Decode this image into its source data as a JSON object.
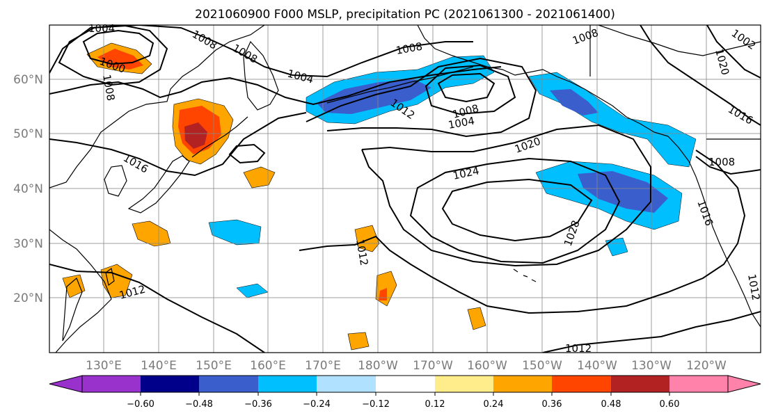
{
  "title": "2021060900 F000 MSLP, precipitation PC (2021061300 - 2021061400)",
  "map": {
    "lat_labels": [
      "60°N",
      "50°N",
      "40°N",
      "30°N",
      "20°N"
    ],
    "lon_labels": [
      "130°E",
      "140°E",
      "150°E",
      "160°E",
      "170°E",
      "180°W",
      "170°W",
      "160°W",
      "150°W",
      "140°W",
      "130°W",
      "120°W"
    ],
    "isobar_labels": [
      "1004",
      "1008",
      "1008",
      "1008",
      "1000",
      "1008",
      "1004",
      "1012",
      "1008",
      "1008",
      "1004",
      "1016",
      "1020",
      "1024",
      "1028",
      "1012",
      "1012",
      "1016",
      "1008",
      "1016",
      "1012",
      "1012",
      "1020",
      "1002"
    ],
    "colors": {
      "neg_0_60": "#9932cc",
      "neg_0_48": "#00008b",
      "neg_0_36": "#3a5fcd",
      "neg_0_24": "#00bfff",
      "neg_0_12": "#b0e2ff",
      "zero": "#ffffff",
      "pos_0_12": "#ffec8b",
      "pos_0_24": "#ffa500",
      "pos_0_36": "#ff4500",
      "pos_0_48": "#b22222",
      "pos_0_60": "#ff82ab"
    }
  },
  "colorbar": {
    "ticks": [
      "−0.60",
      "−0.48",
      "−0.36",
      "−0.24",
      "−0.12",
      "0.12",
      "0.24",
      "0.36",
      "0.48",
      "0.60"
    ],
    "colors": [
      "#9932cc",
      "#00008b",
      "#3a5fcd",
      "#00bfff",
      "#b0e2ff",
      "#ffffff",
      "#ffec8b",
      "#ffa500",
      "#ff4500",
      "#b22222",
      "#ff82ab"
    ]
  }
}
